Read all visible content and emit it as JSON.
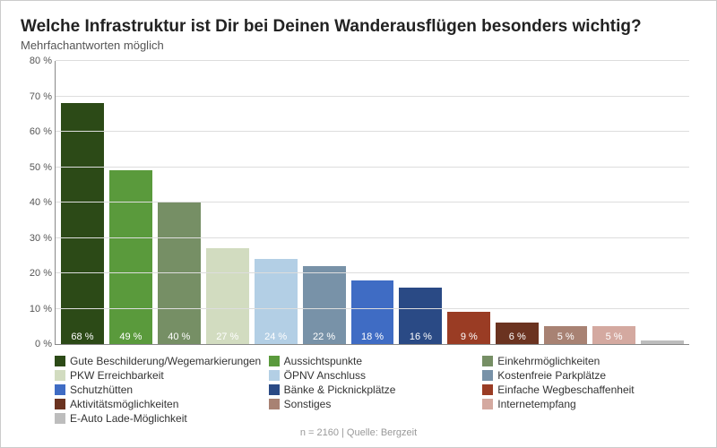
{
  "chart": {
    "type": "bar",
    "title": "Welche Infrastruktur ist Dir bei Deinen Wanderausflügen besonders wichtig?",
    "subtitle": "Mehrfachantworten möglich",
    "footer": "n = 2160 | Quelle: Bergzeit",
    "ylim": [
      0,
      80
    ],
    "ytick_step": 10,
    "ytick_suffix": " %",
    "bar_label_suffix": " %",
    "background_color": "#ffffff",
    "grid_color": "#dddddd",
    "axis_color": "#888888",
    "title_fontsize": 19,
    "subtitle_fontsize": 13,
    "label_fontsize": 11,
    "legend_fontsize": 12,
    "series": [
      {
        "label": "Gute Beschilderung/Wegemarkierungen",
        "value": 68,
        "color": "#2c4a17"
      },
      {
        "label": "Aussichtspunkte",
        "value": 49,
        "color": "#5a9a3c"
      },
      {
        "label": "Einkehrmöglichkeiten",
        "value": 40,
        "color": "#768f65"
      },
      {
        "label": "PKW Erreichbarkeit",
        "value": 27,
        "color": "#d2dcc0"
      },
      {
        "label": "ÖPNV Anschluss",
        "value": 24,
        "color": "#b3cfe5"
      },
      {
        "label": "Kostenfreie Parkplätze",
        "value": 22,
        "color": "#7892a8"
      },
      {
        "label": "Schutzhütten",
        "value": 18,
        "color": "#3f6cc4"
      },
      {
        "label": "Bänke & Picknickplätze",
        "value": 16,
        "color": "#2a4a85"
      },
      {
        "label": "Einfache Wegbeschaffenheit",
        "value": 9,
        "color": "#9a3c24"
      },
      {
        "label": "Aktivitätsmöglichkeiten",
        "value": 6,
        "color": "#6b3320"
      },
      {
        "label": "Sonstiges",
        "value": 5,
        "color": "#a88273"
      },
      {
        "label": "Internetempfang",
        "value": 5,
        "color": "#d4a9a0"
      },
      {
        "label": "E-Auto Lade-Möglichkeit",
        "value": 1,
        "color": "#bdbdbd"
      }
    ]
  }
}
